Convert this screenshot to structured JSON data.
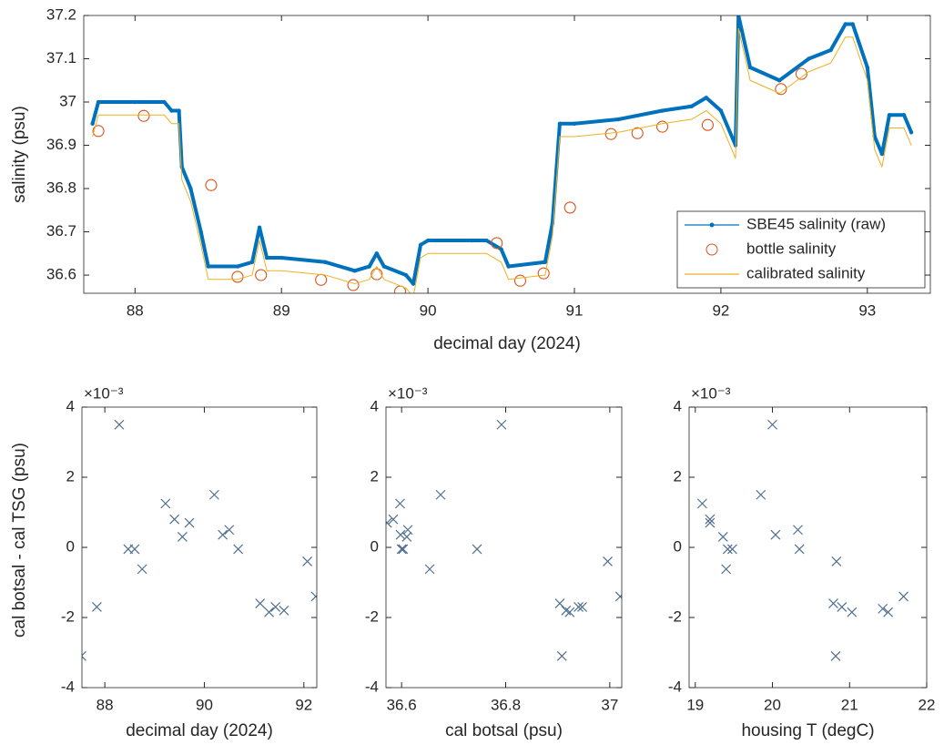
{
  "chart_data": [
    {
      "type": "line",
      "xlabel": "decimal day (2024)",
      "ylabel": "salinity (psu)",
      "xlim": [
        87.65,
        93.43
      ],
      "ylim": [
        36.558,
        37.2
      ],
      "xticks": [
        88,
        89,
        90,
        91,
        92,
        93
      ],
      "yticks": [
        36.6,
        36.7,
        36.8,
        36.9,
        37,
        37.1,
        37.2
      ],
      "legend": "lower right",
      "series": [
        {
          "name": "SBE45 salinity (raw)",
          "color": "#0072BD",
          "line": true,
          "marker": ".",
          "x": [
            87.71,
            87.75,
            88.0,
            88.2,
            88.25,
            88.3,
            88.32,
            88.38,
            88.45,
            88.5,
            88.7,
            88.8,
            88.85,
            88.9,
            89.0,
            89.3,
            89.5,
            89.6,
            89.65,
            89.7,
            89.85,
            89.9,
            89.95,
            90.0,
            90.3,
            90.4,
            90.5,
            90.55,
            90.8,
            90.85,
            90.9,
            91.0,
            91.3,
            91.6,
            91.8,
            91.9,
            92.0,
            92.1,
            92.12,
            92.2,
            92.4,
            92.6,
            92.75,
            92.85,
            92.9,
            93.0,
            93.05,
            93.1,
            93.15,
            93.25,
            93.3
          ],
          "values": [
            36.95,
            37.0,
            37.0,
            37.0,
            36.98,
            36.98,
            36.85,
            36.8,
            36.7,
            36.62,
            36.62,
            36.63,
            36.71,
            36.64,
            36.64,
            36.63,
            36.61,
            36.62,
            36.65,
            36.62,
            36.6,
            36.58,
            36.67,
            36.68,
            36.68,
            36.68,
            36.66,
            36.62,
            36.63,
            36.72,
            36.95,
            36.95,
            36.96,
            36.98,
            36.99,
            37.01,
            36.98,
            36.9,
            37.2,
            37.08,
            37.05,
            37.1,
            37.12,
            37.18,
            37.18,
            37.08,
            36.92,
            36.88,
            36.97,
            36.97,
            36.93
          ]
        },
        {
          "name": "bottle salinity",
          "color": "#D95319",
          "line": false,
          "marker": "o",
          "x": [
            87.75,
            88.06,
            88.52,
            88.7,
            88.86,
            89.27,
            89.49,
            89.65,
            89.81,
            90.47,
            90.63,
            90.79,
            90.97,
            91.25,
            91.43,
            91.6,
            91.91,
            92.41,
            92.55
          ],
          "values": [
            36.933,
            36.968,
            36.808,
            36.596,
            36.6,
            36.589,
            36.577,
            36.602,
            36.562,
            36.674,
            36.587,
            36.604,
            36.756,
            36.926,
            36.928,
            36.943,
            36.947,
            37.03,
            37.065
          ]
        },
        {
          "name": "calibrated salinity",
          "color": "#EDB120",
          "line": true,
          "marker": "none",
          "x": [
            87.71,
            87.75,
            88.0,
            88.2,
            88.25,
            88.3,
            88.32,
            88.38,
            88.45,
            88.5,
            88.7,
            88.8,
            88.85,
            88.9,
            89.0,
            89.3,
            89.5,
            89.6,
            89.65,
            89.7,
            89.85,
            89.9,
            89.95,
            90.0,
            90.3,
            90.4,
            90.5,
            90.55,
            90.8,
            90.85,
            90.9,
            91.0,
            91.3,
            91.6,
            91.8,
            91.9,
            92.0,
            92.1,
            92.12,
            92.2,
            92.4,
            92.6,
            92.75,
            92.85,
            92.9,
            93.0,
            93.05,
            93.1,
            93.15,
            93.25,
            93.3
          ],
          "values": [
            36.92,
            36.97,
            36.97,
            36.97,
            36.95,
            36.95,
            36.82,
            36.77,
            36.67,
            36.59,
            36.59,
            36.6,
            36.68,
            36.61,
            36.61,
            36.6,
            36.58,
            36.59,
            36.62,
            36.59,
            36.57,
            36.55,
            36.64,
            36.65,
            36.65,
            36.65,
            36.63,
            36.59,
            36.6,
            36.69,
            36.92,
            36.92,
            36.93,
            36.95,
            36.96,
            36.98,
            36.95,
            36.87,
            37.17,
            37.05,
            37.02,
            37.07,
            37.09,
            37.15,
            37.15,
            37.05,
            36.89,
            36.85,
            36.94,
            36.94,
            36.9
          ]
        }
      ]
    },
    {
      "type": "scatter",
      "xlabel": "decimal day (2024)",
      "ylabel": "cal botsal - cal TSG (psu)",
      "y_exponent": "×10⁻³",
      "xlim": [
        87.54,
        92.26
      ],
      "ylim": [
        -4,
        4
      ],
      "xticks": [
        88,
        90,
        92
      ],
      "yticks": [
        -4,
        -2,
        0,
        2,
        4
      ],
      "color": "#4f6f8f",
      "marker": "x",
      "x": [
        87.53,
        87.84,
        88.29,
        88.47,
        88.6,
        88.75,
        89.22,
        89.4,
        89.56,
        89.7,
        90.2,
        90.37,
        90.5,
        90.68,
        91.12,
        91.3,
        91.43,
        91.6,
        92.07,
        92.24
      ],
      "values": [
        -3.1,
        -1.7,
        3.5,
        -0.05,
        -0.05,
        -0.62,
        1.25,
        0.8,
        0.3,
        0.7,
        1.5,
        0.36,
        0.5,
        -0.05,
        -1.6,
        -1.85,
        -1.7,
        -1.8,
        -0.4,
        -1.4
      ]
    },
    {
      "type": "scatter",
      "xlabel": "cal botsal (psu)",
      "y_exponent": "×10⁻³",
      "xlim": [
        36.57,
        37.023
      ],
      "ylim": [
        -4,
        4
      ],
      "xticks": [
        36.6,
        36.8,
        37
      ],
      "yticks": [
        -4,
        -2,
        0,
        2,
        4
      ],
      "color": "#4f6f8f",
      "marker": "x",
      "x": [
        36.572,
        36.584,
        36.597,
        36.598,
        36.6,
        36.603,
        36.61,
        36.612,
        36.654,
        36.675,
        36.745,
        36.792,
        36.904,
        36.908,
        36.916,
        36.923,
        36.94,
        36.947,
        36.996,
        37.02
      ],
      "values": [
        0.7,
        0.8,
        1.25,
        0.36,
        -0.05,
        -0.05,
        0.3,
        0.5,
        -0.62,
        1.5,
        -0.05,
        3.5,
        -1.6,
        -3.1,
        -1.8,
        -1.85,
        -1.7,
        -1.7,
        -0.4,
        -1.4
      ]
    },
    {
      "type": "scatter",
      "xlabel": "housing T (degC)",
      "y_exponent": "×10⁻³",
      "xlim": [
        18.92,
        22
      ],
      "ylim": [
        -4,
        4
      ],
      "xticks": [
        19,
        20,
        21,
        22
      ],
      "yticks": [
        -4,
        -2,
        0,
        2,
        4
      ],
      "color": "#4f6f8f",
      "marker": "x",
      "x": [
        19.09,
        19.19,
        19.19,
        19.36,
        19.42,
        19.48,
        19.4,
        19.85,
        20.0,
        20.04,
        20.33,
        20.35,
        20.83,
        20.79,
        20.9,
        20.82,
        21.03,
        21.43,
        21.5,
        21.7
      ],
      "values": [
        1.25,
        0.8,
        0.7,
        0.3,
        -0.05,
        -0.05,
        -0.62,
        1.5,
        3.5,
        0.36,
        0.5,
        -0.05,
        -0.4,
        -1.6,
        -1.7,
        -3.1,
        -1.85,
        -1.75,
        -1.85,
        -1.4
      ]
    }
  ]
}
